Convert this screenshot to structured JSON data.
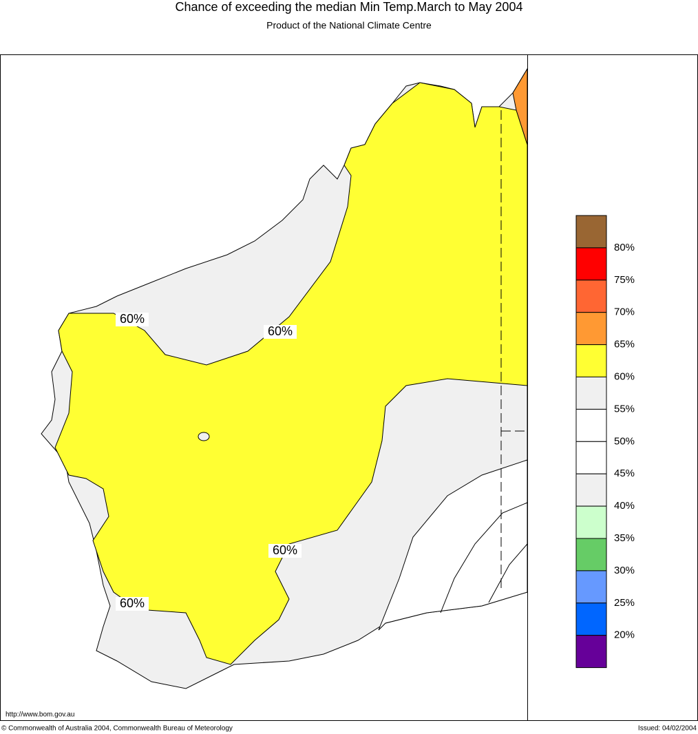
{
  "header": {
    "title": "Chance of exceeding the median Min Temp.March to May 2004",
    "subtitle": "Product of the National Climate Centre"
  },
  "map": {
    "contour_labels": [
      "60%",
      "60%",
      "60%",
      "60%"
    ]
  },
  "legend": {
    "colors": [
      "#996633",
      "#ff0000",
      "#ff6633",
      "#ff9933",
      "#ffff33",
      "#f0f0f0",
      "#ffffff",
      "#ffffff",
      "#f0f0f0",
      "#ccffcc",
      "#66cc66",
      "#6699ff",
      "#0066ff",
      "#660099"
    ],
    "labels": [
      "80%",
      "75%",
      "70%",
      "65%",
      "60%",
      "55%",
      "50%",
      "45%",
      "40%",
      "35%",
      "30%",
      "25%",
      "20%"
    ]
  },
  "footer": {
    "url": "http://www.bom.gov.au",
    "copyright": "© Commonwealth of Australia 2004, Commonwealth Bureau of Meteorology",
    "issued": "Issued: 04/02/2004"
  }
}
